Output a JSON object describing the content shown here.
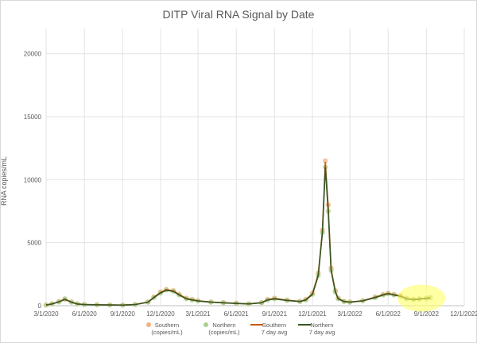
{
  "chart_data": {
    "type": "scatter+line",
    "title": "DITP Viral RNA Signal by Date",
    "ylabel": "RNA copies/mL",
    "xlabel": "",
    "ylim": [
      0,
      22000
    ],
    "yticks": [
      0,
      5000,
      10000,
      15000,
      20000
    ],
    "ytick_labels": [
      "0",
      "5000",
      "10000",
      "15000",
      "20000"
    ],
    "xlim": [
      "2020-03-01",
      "2022-12-01"
    ],
    "xticks": [
      "2020-03-01",
      "2020-06-01",
      "2020-09-01",
      "2020-12-01",
      "2021-03-01",
      "2021-06-01",
      "2021-09-01",
      "2021-12-01",
      "2022-03-01",
      "2022-06-01",
      "2022-09-01",
      "2022-12-01"
    ],
    "xtick_labels": [
      "3/1/2020",
      "6/1/2020",
      "9/1/2020",
      "12/1/2020",
      "3/1/2021",
      "6/1/2021",
      "9/1/2021",
      "12/1/2021",
      "3/1/2022",
      "6/1/2022",
      "9/1/2022",
      "12/1/2022"
    ],
    "grid": true,
    "legend_position": "bottom",
    "dates": [
      "2020-03-01",
      "2020-03-15",
      "2020-04-01",
      "2020-04-15",
      "2020-05-01",
      "2020-05-15",
      "2020-06-01",
      "2020-07-01",
      "2020-08-01",
      "2020-09-01",
      "2020-10-01",
      "2020-11-01",
      "2020-11-15",
      "2020-12-01",
      "2020-12-15",
      "2021-01-01",
      "2021-01-15",
      "2021-02-01",
      "2021-02-15",
      "2021-03-01",
      "2021-04-01",
      "2021-05-01",
      "2021-06-01",
      "2021-07-01",
      "2021-08-01",
      "2021-08-15",
      "2021-09-01",
      "2021-10-01",
      "2021-11-01",
      "2021-11-15",
      "2021-12-01",
      "2021-12-15",
      "2021-12-25",
      "2022-01-01",
      "2022-01-08",
      "2022-01-15",
      "2022-01-25",
      "2022-02-01",
      "2022-02-15",
      "2022-03-01",
      "2022-04-01",
      "2022-05-01",
      "2022-05-20",
      "2022-06-01",
      "2022-06-15",
      "2022-07-01",
      "2022-07-15",
      "2022-08-01",
      "2022-08-15",
      "2022-09-01",
      "2022-09-10"
    ],
    "series": [
      {
        "name": "Southern\n(copies/mL)",
        "kind": "scatter",
        "color": "#f4b183",
        "values": [
          50,
          150,
          350,
          500,
          300,
          150,
          100,
          80,
          60,
          50,
          100,
          300,
          700,
          1100,
          1300,
          1200,
          900,
          600,
          500,
          400,
          300,
          250,
          200,
          150,
          250,
          500,
          600,
          450,
          350,
          500,
          1000,
          2600,
          6000,
          11500,
          8000,
          3000,
          1200,
          600,
          350,
          300,
          400,
          700,
          900,
          1000,
          900,
          800,
          600,
          500,
          550,
          600,
          650
        ]
      },
      {
        "name": "Northern\n(copies/mL)",
        "kind": "scatter",
        "color": "#a9d18e",
        "values": [
          60,
          140,
          300,
          550,
          280,
          140,
          90,
          70,
          55,
          45,
          90,
          280,
          650,
          1000,
          1250,
          1150,
          850,
          550,
          450,
          380,
          280,
          230,
          180,
          140,
          230,
          450,
          550,
          420,
          330,
          450,
          900,
          2400,
          5800,
          11000,
          7500,
          2800,
          1100,
          550,
          330,
          280,
          380,
          650,
          850,
          950,
          850,
          750,
          550,
          480,
          520,
          580,
          620
        ]
      },
      {
        "name": "Southern\n7 day avg",
        "kind": "line",
        "color": "#c55a11",
        "values": [
          50,
          140,
          320,
          480,
          290,
          140,
          90,
          75,
          58,
          48,
          95,
          290,
          680,
          1050,
          1280,
          1180,
          880,
          580,
          480,
          390,
          290,
          240,
          190,
          145,
          240,
          480,
          580,
          440,
          340,
          480,
          960,
          2500,
          5900,
          11400,
          7800,
          2900,
          1150,
          580,
          340,
          290,
          390,
          680,
          880,
          980,
          880,
          780,
          580,
          490,
          540,
          590,
          640
        ]
      },
      {
        "name": "Northern\n7 day avg",
        "kind": "line",
        "color": "#375623",
        "values": [
          55,
          135,
          300,
          520,
          275,
          135,
          88,
          70,
          55,
          45,
          88,
          275,
          640,
          1000,
          1230,
          1130,
          840,
          545,
          445,
          375,
          275,
          228,
          178,
          140,
          228,
          445,
          545,
          415,
          328,
          445,
          890,
          2380,
          5750,
          11000,
          7450,
          2780,
          1090,
          545,
          328,
          278,
          378,
          645,
          845,
          945,
          845,
          745,
          545,
          478,
          518,
          578,
          618
        ]
      }
    ]
  },
  "annotation": {
    "kind": "highlight",
    "color": "#ffff66"
  }
}
